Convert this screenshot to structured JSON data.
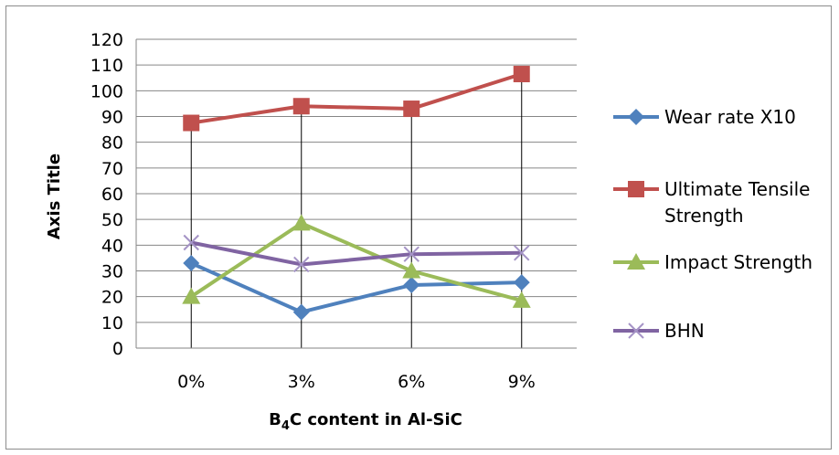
{
  "chart_data": {
    "type": "line",
    "categories": [
      "0%",
      "3%",
      "6%",
      "9%"
    ],
    "series": [
      {
        "name": "Wear  rate X10",
        "color": "#4f81bd",
        "marker": "diamond",
        "values": [
          33,
          14,
          24.5,
          25.5
        ]
      },
      {
        "name": "Ultimate Tensile Strength",
        "color": "#c0504d",
        "marker": "square",
        "values": [
          87.5,
          94,
          93,
          106.5
        ]
      },
      {
        "name": "Impact Strength",
        "color": "#9bbb59",
        "marker": "triangle",
        "values": [
          20,
          48.5,
          30,
          18.5
        ]
      },
      {
        "name": "BHN",
        "color": "#8064a2",
        "marker": "x",
        "values": [
          41,
          32.5,
          36.5,
          37
        ]
      }
    ],
    "xlabel": {
      "main": "B",
      "sub": "4",
      "rest": "C content in Al-SiC"
    },
    "ylabel": "Axis Title",
    "ylim": [
      0,
      120
    ],
    "ystep": 10,
    "grid": true,
    "drop_lines": true,
    "legend_position": "right"
  }
}
